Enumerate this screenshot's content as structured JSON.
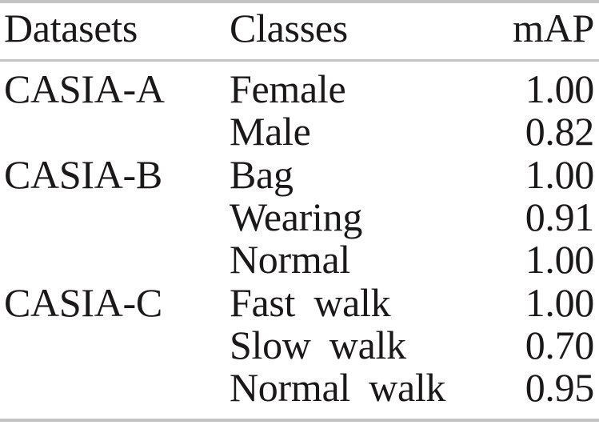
{
  "figure": {
    "kind": "paper-results-table"
  },
  "table": {
    "headers": [
      "Datasets",
      "Classes",
      "mAP"
    ],
    "rows": [
      {
        "dataset": "CASIA-A",
        "class": "Female",
        "map": "1.00"
      },
      {
        "dataset": "",
        "class": "Male",
        "map": "0.82"
      },
      {
        "dataset": "CASIA-B",
        "class": "Bag",
        "map": "1.00"
      },
      {
        "dataset": "",
        "class": "Wearing",
        "map": "0.91"
      },
      {
        "dataset": "",
        "class": "Normal",
        "map": "1.00"
      },
      {
        "dataset": "CASIA-C",
        "class": "Fast walk",
        "map": "1.00"
      },
      {
        "dataset": "",
        "class": "Slow walk",
        "map": "0.70"
      },
      {
        "dataset": "",
        "class": "Normal walk",
        "map": "0.95"
      }
    ]
  },
  "chart_data": {
    "type": "table",
    "columns": [
      "Datasets",
      "Classes",
      "mAP"
    ],
    "rows": [
      [
        "CASIA-A",
        "Female",
        1.0
      ],
      [
        "",
        "Male",
        0.82
      ],
      [
        "CASIA-B",
        "Bag",
        1.0
      ],
      [
        "",
        "Wearing",
        0.91
      ],
      [
        "",
        "Normal",
        1.0
      ],
      [
        "CASIA-C",
        "Fast walk",
        1.0
      ],
      [
        "",
        "Slow walk",
        0.7
      ],
      [
        "",
        "Normal walk",
        0.95
      ]
    ]
  },
  "colors": {
    "text": "#1b181a",
    "rule": "#c4c4c4",
    "background": "#ffffff"
  }
}
